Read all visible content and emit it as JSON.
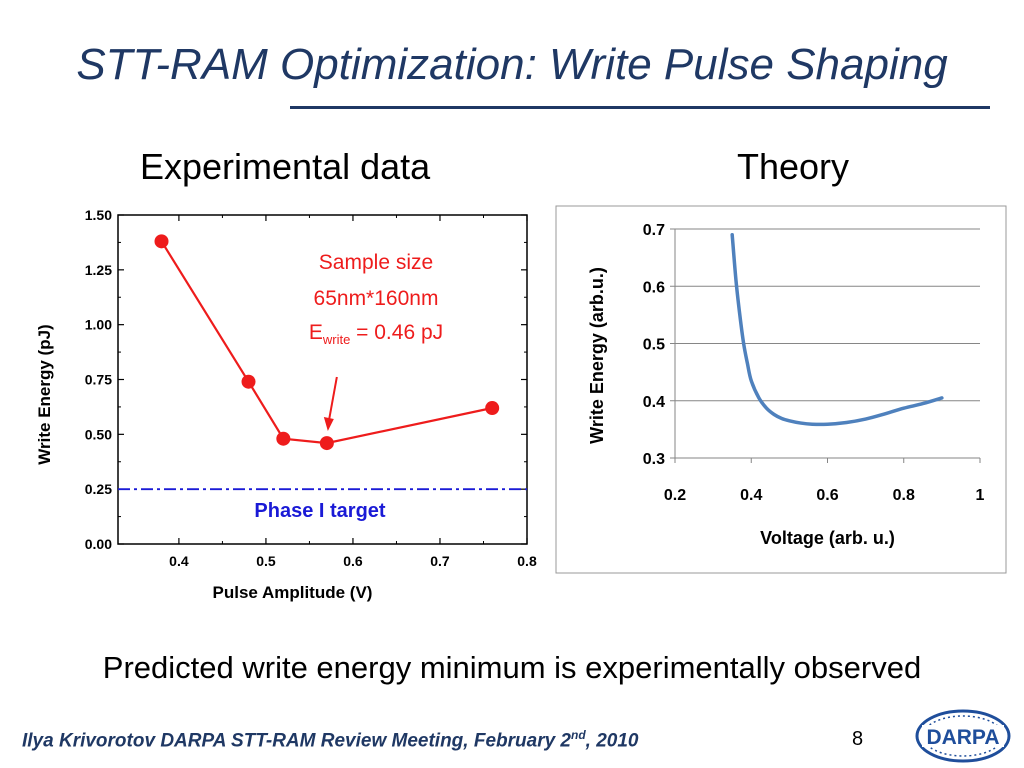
{
  "slide": {
    "title": "STT-RAM Optimization: Write Pulse Shaping",
    "left_heading": "Experimental data",
    "right_heading": "Theory",
    "caption": "Predicted write energy minimum is experimentally observed",
    "footer_main": "Ilya Krivorotov  DARPA STT-RAM Review Meeting, February 2",
    "footer_sup": "nd",
    "footer_end": ", 2010",
    "page_number": "8",
    "logo_text": "DARPA"
  },
  "colors": {
    "title": "#1f3864",
    "experimental_series": "#ee1c1c",
    "target_line": "#1a1ad6",
    "theory_series": "#4f81bd"
  },
  "chart_data": [
    {
      "type": "scatter",
      "title": "Experimental data",
      "xlabel": "Pulse Amplitude (V)",
      "ylabel": "Write Energy (pJ)",
      "xlim": [
        0.33,
        0.8
      ],
      "ylim": [
        0,
        1.5
      ],
      "x_ticks": [
        "0.4",
        "0.5",
        "0.6",
        "0.7",
        "0.8"
      ],
      "y_ticks": [
        "0.00",
        "0.25",
        "0.50",
        "0.75",
        "1.00",
        "1.25",
        "1.50"
      ],
      "grid": false,
      "series": [
        {
          "x": [
            0.38,
            0.48,
            0.52,
            0.57,
            0.76
          ],
          "y": [
            1.38,
            0.74,
            0.48,
            0.46,
            0.62
          ]
        }
      ],
      "reference_line": {
        "y": 0.25,
        "label": "Phase I target"
      },
      "annotation": {
        "line1": "Sample size",
        "line2": "65nm*160nm",
        "line3_main": "E",
        "line3_sub": "write",
        "line3_rest": " = 0.46 pJ",
        "arrow_x": 0.57
      }
    },
    {
      "type": "line",
      "title": "Theory",
      "xlabel": "Voltage (arb. u.)",
      "ylabel": "Write Energy (arb.u.)",
      "xlim": [
        0.2,
        1.0
      ],
      "ylim": [
        0.3,
        0.7
      ],
      "x_ticks": [
        "0.2",
        "0.4",
        "0.6",
        "0.8",
        "1"
      ],
      "y_ticks": [
        "0.3",
        "0.4",
        "0.5",
        "0.6",
        "0.7"
      ],
      "grid": true,
      "series": [
        {
          "x": [
            0.35,
            0.36,
            0.37,
            0.38,
            0.39,
            0.4,
            0.42,
            0.44,
            0.46,
            0.48,
            0.5,
            0.53,
            0.56,
            0.6,
            0.65,
            0.7,
            0.75,
            0.8,
            0.85,
            0.9
          ],
          "y": [
            0.69,
            0.61,
            0.55,
            0.5,
            0.465,
            0.435,
            0.405,
            0.387,
            0.376,
            0.369,
            0.365,
            0.361,
            0.359,
            0.359,
            0.362,
            0.368,
            0.377,
            0.387,
            0.395,
            0.405
          ]
        }
      ]
    }
  ]
}
